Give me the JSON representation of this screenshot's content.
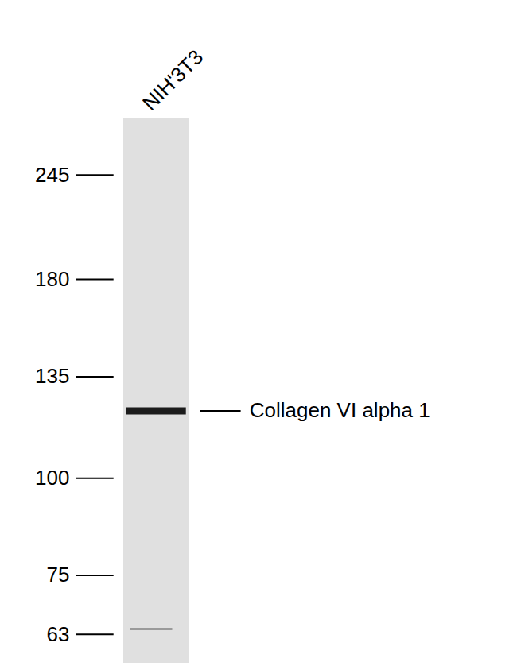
{
  "chart_data": {
    "type": "blot",
    "categories": [
      "NIH'3T3"
    ],
    "bands": [
      {
        "value": 122,
        "label": "Collagen VI alpha 1"
      },
      {
        "value": 64
      }
    ],
    "log": "y",
    "ylim": [
      58,
      290
    ],
    "yticks": [
      245,
      180,
      135,
      100,
      75,
      63
    ]
  }
}
